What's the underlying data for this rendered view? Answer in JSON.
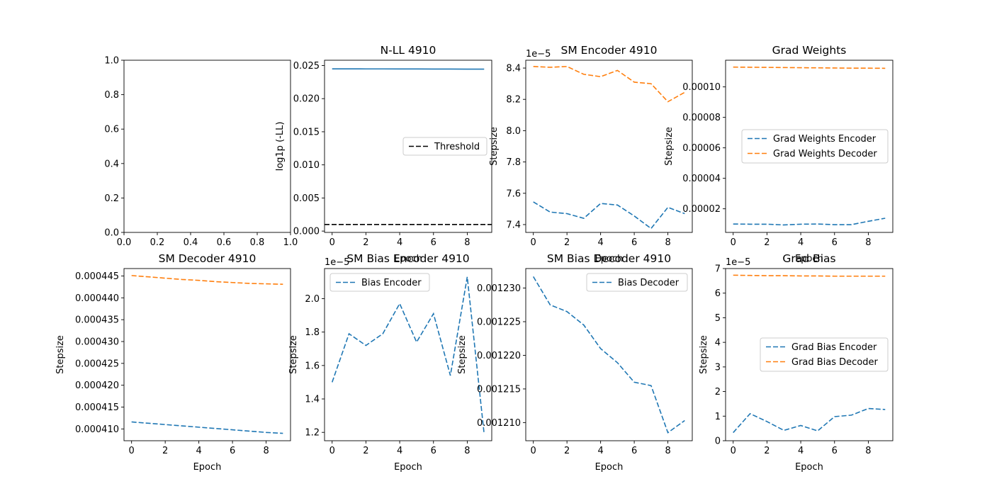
{
  "chart_data": [
    {
      "type": "line",
      "title": "",
      "xlabel": "",
      "ylabel": "",
      "xlim": [
        0.0,
        1.0
      ],
      "ylim": [
        0.0,
        1.0
      ],
      "xticks": [
        0.0,
        0.2,
        0.4,
        0.6,
        0.8,
        1.0
      ],
      "xtick_labels": [
        "0.0",
        "0.2",
        "0.4",
        "0.6",
        "0.8",
        "1.0"
      ],
      "yticks": [
        0.0,
        0.2,
        0.4,
        0.6,
        0.8,
        1.0
      ],
      "ytick_labels": [
        "0.0",
        "0.2",
        "0.4",
        "0.6",
        "0.8",
        "1.0"
      ],
      "series": [],
      "legend": null
    },
    {
      "type": "line",
      "title": "N-LL 4910",
      "xlabel": "Epoch",
      "ylabel": "log1p (-LL)",
      "xlim": [
        -0.45,
        9.45
      ],
      "ylim": [
        -0.0002,
        0.0258
      ],
      "xticks": [
        0,
        2,
        4,
        6,
        8
      ],
      "xtick_labels": [
        "0",
        "2",
        "4",
        "6",
        "8"
      ],
      "yticks": [
        0.0,
        0.005,
        0.01,
        0.015,
        0.02,
        0.025
      ],
      "ytick_labels": [
        "0.000",
        "0.005",
        "0.010",
        "0.015",
        "0.020",
        "0.025"
      ],
      "series": [
        {
          "x": [
            0,
            1,
            2,
            3,
            4,
            5,
            6,
            7,
            8,
            9
          ],
          "values": [
            0.0245,
            0.0245,
            0.02449,
            0.02449,
            0.02448,
            0.02448,
            0.02447,
            0.02447,
            0.02446,
            0.02446
          ],
          "color": "#1f77b4",
          "dash": "solid"
        },
        {
          "name": "Threshold",
          "hline": 0.001,
          "color": "#000000",
          "dash": "dashed"
        }
      ],
      "legend": "center right"
    },
    {
      "type": "line",
      "title": "SM Encoder 4910",
      "xlabel": "Epoch",
      "ylabel": "Stepsize",
      "offset_label": "1e−5",
      "xlim": [
        -0.45,
        9.45
      ],
      "ylim": [
        7.35,
        8.45
      ],
      "xticks": [
        0,
        2,
        4,
        6,
        8
      ],
      "xtick_labels": [
        "0",
        "2",
        "4",
        "6",
        "8"
      ],
      "yticks": [
        7.4,
        7.6,
        7.8,
        8.0,
        8.2,
        8.4
      ],
      "ytick_labels": [
        "7.4",
        "7.6",
        "7.8",
        "8.0",
        "8.2",
        "8.4"
      ],
      "series": [
        {
          "x": [
            0,
            1,
            2,
            3,
            4,
            5,
            6,
            7,
            8,
            9
          ],
          "values": [
            7.545,
            7.48,
            7.47,
            7.44,
            7.535,
            7.525,
            7.455,
            7.375,
            7.51,
            7.47
          ],
          "color": "#1f77b4",
          "dash": "dashed"
        },
        {
          "x": [
            0,
            1,
            2,
            3,
            4,
            5,
            6,
            7,
            8,
            9
          ],
          "values": [
            8.41,
            8.405,
            8.41,
            8.36,
            8.345,
            8.385,
            8.31,
            8.3,
            8.185,
            8.245
          ],
          "color": "#ff7f0e",
          "dash": "dashed"
        }
      ],
      "legend": null
    },
    {
      "type": "line",
      "title": "Grad Weights",
      "xlabel": "Epoch",
      "ylabel": "Stepsize",
      "xlim": [
        -0.45,
        9.45
      ],
      "ylim": [
        4.5e-06,
        0.0001175
      ],
      "xticks": [
        0,
        2,
        4,
        6,
        8
      ],
      "xtick_labels": [
        "0",
        "2",
        "4",
        "6",
        "8"
      ],
      "yticks": [
        2e-05,
        4e-05,
        6e-05,
        8e-05,
        0.0001
      ],
      "ytick_labels": [
        "0.00002",
        "0.00004",
        "0.00006",
        "0.00008",
        "0.00010"
      ],
      "series": [
        {
          "name": "Grad Weights Encoder",
          "x": [
            0,
            1,
            2,
            3,
            4,
            5,
            6,
            7,
            8,
            9
          ],
          "values": [
            1e-05,
            9.9e-06,
            9.9e-06,
            9.4e-06,
            9.9e-06,
            1e-05,
            9.6e-06,
            9.6e-06,
            1.18e-05,
            1.38e-05
          ],
          "color": "#1f77b4",
          "dash": "dashed"
        },
        {
          "name": "Grad Weights Decoder",
          "x": [
            0,
            1,
            2,
            3,
            4,
            5,
            6,
            7,
            8,
            9
          ],
          "values": [
            0.000113,
            0.0001129,
            0.0001128,
            0.0001127,
            0.0001126,
            0.0001125,
            0.0001124,
            0.0001123,
            0.0001123,
            0.0001122
          ],
          "color": "#ff7f0e",
          "dash": "dashed"
        }
      ],
      "legend": "center right"
    },
    {
      "type": "line",
      "title": "SM Decoder 4910",
      "xlabel": "Epoch",
      "ylabel": "Stepsize",
      "xlim": [
        -0.45,
        9.45
      ],
      "ylim": [
        0.0004073,
        0.0004467
      ],
      "xticks": [
        0,
        2,
        4,
        6,
        8
      ],
      "xtick_labels": [
        "0",
        "2",
        "4",
        "6",
        "8"
      ],
      "yticks": [
        0.00041,
        0.000415,
        0.00042,
        0.000425,
        0.00043,
        0.000435,
        0.00044,
        0.000445
      ],
      "ytick_labels": [
        "0.000410",
        "0.000415",
        "0.000420",
        "0.000425",
        "0.000430",
        "0.000435",
        "0.000440",
        "0.000445"
      ],
      "series": [
        {
          "x": [
            0,
            1,
            2,
            3,
            4,
            5,
            6,
            7,
            8,
            9
          ],
          "values": [
            0.0004116,
            0.0004113,
            0.000411,
            0.0004107,
            0.0004104,
            0.0004101,
            0.0004098,
            0.0004095,
            0.0004092,
            0.000409
          ],
          "color": "#1f77b4",
          "dash": "dashed"
        },
        {
          "x": [
            0,
            1,
            2,
            3,
            4,
            5,
            6,
            7,
            8,
            9
          ],
          "values": [
            0.0004451,
            0.0004448,
            0.0004445,
            0.0004442,
            0.000444,
            0.0004437,
            0.0004435,
            0.0004433,
            0.0004432,
            0.0004431
          ],
          "color": "#ff7f0e",
          "dash": "dashed"
        }
      ],
      "legend": null
    },
    {
      "type": "line",
      "title": "SM Bias Encoder 4910",
      "xlabel": "Epoch",
      "ylabel": "Stepsize",
      "offset_label": "1e−5",
      "xlim": [
        -0.45,
        9.45
      ],
      "ylim": [
        1.15,
        2.18
      ],
      "xticks": [
        0,
        2,
        4,
        6,
        8
      ],
      "xtick_labels": [
        "0",
        "2",
        "4",
        "6",
        "8"
      ],
      "yticks": [
        1.2,
        1.4,
        1.6,
        1.8,
        2.0
      ],
      "ytick_labels": [
        "1.2",
        "1.4",
        "1.6",
        "1.8",
        "2.0"
      ],
      "series": [
        {
          "name": "Bias Encoder",
          "x": [
            0,
            1,
            2,
            3,
            4,
            5,
            6,
            7,
            8,
            9
          ],
          "values": [
            1.5,
            1.79,
            1.72,
            1.79,
            1.97,
            1.74,
            1.91,
            1.54,
            2.13,
            1.19
          ],
          "color": "#1f77b4",
          "dash": "dashed"
        }
      ],
      "legend": "upper left"
    },
    {
      "type": "line",
      "title": "SM Bias Decoder 4910",
      "xlabel": "Epoch",
      "ylabel": "Stepsize",
      "xlim": [
        -0.45,
        9.45
      ],
      "ylim": [
        0.0012073,
        0.0012329
      ],
      "xticks": [
        0,
        2,
        4,
        6,
        8
      ],
      "xtick_labels": [
        "0",
        "2",
        "4",
        "6",
        "8"
      ],
      "yticks": [
        0.00121,
        0.001215,
        0.00122,
        0.001225,
        0.00123
      ],
      "ytick_labels": [
        "0.001210",
        "0.001215",
        "0.001220",
        "0.001225",
        "0.001230"
      ],
      "series": [
        {
          "name": "Bias Decoder",
          "x": [
            0,
            1,
            2,
            3,
            4,
            5,
            6,
            7,
            8,
            9
          ],
          "values": [
            0.0012317,
            0.0012275,
            0.0012265,
            0.0012245,
            0.001221,
            0.0012189,
            0.001216,
            0.0012155,
            0.0012085,
            0.0012103
          ],
          "color": "#1f77b4",
          "dash": "dashed"
        }
      ],
      "legend": "upper right"
    },
    {
      "type": "line",
      "title": "Grad Bias",
      "xlabel": "Epoch",
      "ylabel": "Stepsize",
      "offset_label": "1e−5",
      "xlim": [
        -0.45,
        9.45
      ],
      "ylim": [
        0.0,
        7.0
      ],
      "xticks": [
        0,
        2,
        4,
        6,
        8
      ],
      "xtick_labels": [
        "0",
        "2",
        "4",
        "6",
        "8"
      ],
      "yticks": [
        0,
        1,
        2,
        3,
        4,
        5,
        6,
        7
      ],
      "ytick_labels": [
        "0",
        "1",
        "2",
        "3",
        "4",
        "5",
        "6",
        "7"
      ],
      "series": [
        {
          "name": "Grad Bias Encoder",
          "x": [
            0,
            1,
            2,
            3,
            4,
            5,
            6,
            7,
            8,
            9
          ],
          "values": [
            0.33,
            1.1,
            0.78,
            0.42,
            0.62,
            0.4,
            0.98,
            1.04,
            1.31,
            1.27
          ],
          "color": "#1f77b4",
          "dash": "dashed"
        },
        {
          "name": "Grad Bias Decoder",
          "x": [
            0,
            1,
            2,
            3,
            4,
            5,
            6,
            7,
            8,
            9
          ],
          "values": [
            6.73,
            6.72,
            6.71,
            6.71,
            6.7,
            6.7,
            6.69,
            6.69,
            6.69,
            6.69
          ],
          "color": "#ff7f0e",
          "dash": "dashed"
        }
      ],
      "legend": "center right"
    }
  ]
}
